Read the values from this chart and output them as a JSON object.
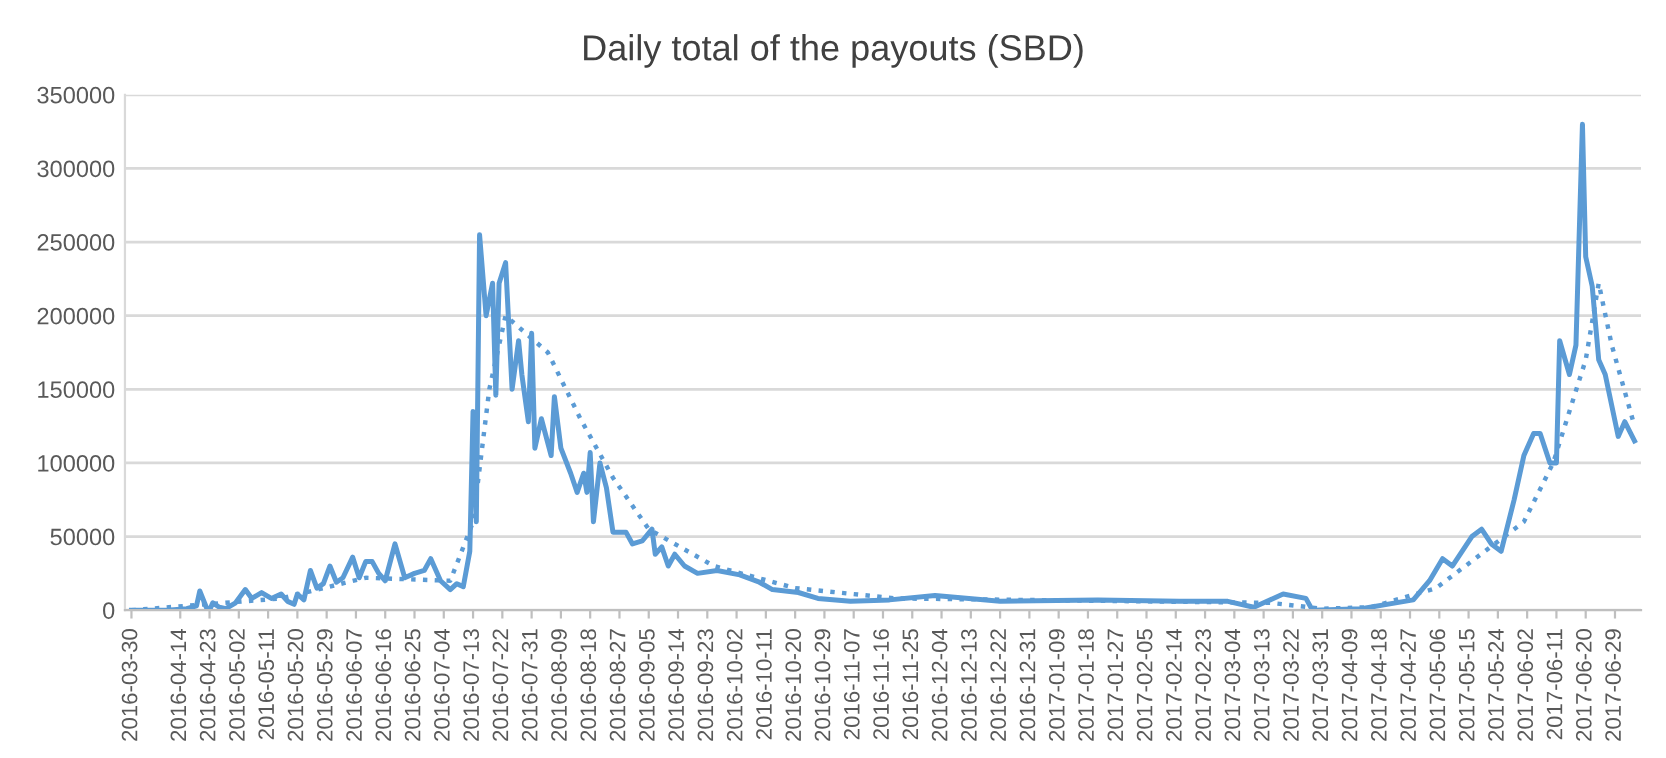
{
  "chart_data": {
    "type": "line",
    "title": "Daily total of the payouts (SBD)",
    "series": [
      {
        "color": "#5b9bd5",
        "line_style": "solid",
        "x": [
          "2016-03-30",
          "2016-04-10",
          "2016-04-16",
          "2016-04-19",
          "2016-04-20",
          "2016-04-22",
          "2016-04-23",
          "2016-04-24",
          "2016-04-26",
          "2016-04-28",
          "2016-05-01",
          "2016-05-04",
          "2016-05-06",
          "2016-05-09",
          "2016-05-12",
          "2016-05-15",
          "2016-05-17",
          "2016-05-19",
          "2016-05-20",
          "2016-05-22",
          "2016-05-24",
          "2016-05-26",
          "2016-05-28",
          "2016-05-30",
          "2016-06-01",
          "2016-06-03",
          "2016-06-06",
          "2016-06-08",
          "2016-06-10",
          "2016-06-12",
          "2016-06-14",
          "2016-06-16",
          "2016-06-19",
          "2016-06-22",
          "2016-06-25",
          "2016-06-28",
          "2016-06-30",
          "2016-07-03",
          "2016-07-06",
          "2016-07-08",
          "2016-07-10",
          "2016-07-12",
          "2016-07-13",
          "2016-07-14",
          "2016-07-15",
          "2016-07-17",
          "2016-07-19",
          "2016-07-20",
          "2016-07-21",
          "2016-07-23",
          "2016-07-25",
          "2016-07-27",
          "2016-07-28",
          "2016-07-30",
          "2016-07-31",
          "2016-08-01",
          "2016-08-03",
          "2016-08-06",
          "2016-08-07",
          "2016-08-09",
          "2016-08-12",
          "2016-08-14",
          "2016-08-16",
          "2016-08-17",
          "2016-08-18",
          "2016-08-19",
          "2016-08-21",
          "2016-08-23",
          "2016-08-25",
          "2016-08-29",
          "2016-08-31",
          "2016-09-03",
          "2016-09-06",
          "2016-09-07",
          "2016-09-09",
          "2016-09-11",
          "2016-09-13",
          "2016-09-16",
          "2016-09-20",
          "2016-09-26",
          "2016-10-03",
          "2016-10-09",
          "2016-10-13",
          "2016-10-21",
          "2016-10-27",
          "2016-11-06",
          "2016-11-18",
          "2016-12-02",
          "2016-12-22",
          "2017-01-21",
          "2017-02-15",
          "2017-03-02",
          "2017-03-10",
          "2017-03-19",
          "2017-03-26",
          "2017-03-28",
          "2017-04-12",
          "2017-04-28",
          "2017-05-03",
          "2017-05-07",
          "2017-05-10",
          "2017-05-16",
          "2017-05-19",
          "2017-05-22",
          "2017-05-25",
          "2017-05-29",
          "2017-06-01",
          "2017-06-04",
          "2017-06-06",
          "2017-06-09",
          "2017-06-11",
          "2017-06-12",
          "2017-06-15",
          "2017-06-17",
          "2017-06-19",
          "2017-06-20",
          "2017-06-22",
          "2017-06-24",
          "2017-06-26",
          "2017-06-30",
          "2017-07-02",
          "2017-07-05"
        ],
        "values": [
          0,
          0,
          1000,
          3000,
          13000,
          2000,
          0,
          5000,
          2000,
          1000,
          5000,
          14000,
          8000,
          12000,
          8000,
          11000,
          6000,
          4000,
          11000,
          7000,
          27000,
          15000,
          18000,
          30000,
          19000,
          22000,
          36000,
          22000,
          33000,
          33000,
          25000,
          20000,
          45000,
          22000,
          25000,
          27000,
          35000,
          20000,
          14000,
          18000,
          16000,
          40000,
          135000,
          60000,
          255000,
          200000,
          222000,
          146000,
          222000,
          236000,
          150000,
          183000,
          160000,
          128000,
          188000,
          110000,
          130000,
          105000,
          145000,
          110000,
          93000,
          80000,
          93000,
          80000,
          107000,
          60000,
          100000,
          83000,
          53000,
          53000,
          45000,
          47000,
          55000,
          38000,
          43000,
          30000,
          38000,
          30000,
          25000,
          27000,
          24000,
          19000,
          14000,
          12000,
          8000,
          6000,
          7000,
          10000,
          6000,
          7000,
          6000,
          6000,
          2000,
          11000,
          8000,
          0,
          1000,
          7000,
          20000,
          35000,
          30000,
          50000,
          55000,
          45000,
          40000,
          75000,
          105000,
          120000,
          120000,
          100000,
          100000,
          183000,
          160000,
          180000,
          330000,
          240000,
          220000,
          170000,
          160000,
          118000,
          128000,
          115000
        ]
      },
      {
        "color": "#5b9bd5",
        "line_style": "dotted",
        "x": [
          "2016-03-30",
          "2016-05-15",
          "2016-06-10",
          "2016-07-06",
          "2016-07-13",
          "2016-07-18",
          "2016-07-23",
          "2016-08-05",
          "2016-08-15",
          "2016-08-25",
          "2016-09-05",
          "2016-09-25",
          "2016-10-20",
          "2016-11-20",
          "2017-03-15",
          "2017-03-31",
          "2017-04-15",
          "2017-05-05",
          "2017-05-20",
          "2017-06-01",
          "2017-06-10",
          "2017-06-20",
          "2017-06-24",
          "2017-06-28",
          "2017-07-05"
        ],
        "values": [
          0,
          8000,
          22000,
          20000,
          60000,
          150000,
          200000,
          175000,
          130000,
          90000,
          55000,
          30000,
          15000,
          8000,
          5000,
          1000,
          2000,
          15000,
          40000,
          60000,
          100000,
          170000,
          222000,
          180000,
          125000
        ]
      }
    ],
    "xlim": [
      "2016-03-28",
      "2017-07-07"
    ],
    "xticks": [
      "2016-03-30",
      "2016-04-14",
      "2016-04-23",
      "2016-05-02",
      "2016-05-11",
      "2016-05-20",
      "2016-05-29",
      "2016-06-07",
      "2016-06-16",
      "2016-06-25",
      "2016-07-04",
      "2016-07-13",
      "2016-07-22",
      "2016-07-31",
      "2016-08-09",
      "2016-08-18",
      "2016-08-27",
      "2016-09-05",
      "2016-09-14",
      "2016-09-23",
      "2016-10-02",
      "2016-10-11",
      "2016-10-20",
      "2016-10-29",
      "2016-11-07",
      "2016-11-16",
      "2016-11-25",
      "2016-12-04",
      "2016-12-13",
      "2016-12-22",
      "2016-12-31",
      "2017-01-09",
      "2017-01-18",
      "2017-01-27",
      "2017-02-05",
      "2017-02-14",
      "2017-02-23",
      "2017-03-04",
      "2017-03-13",
      "2017-03-22",
      "2017-03-31",
      "2017-04-09",
      "2017-04-18",
      "2017-04-27",
      "2017-05-06",
      "2017-05-15",
      "2017-05-24",
      "2017-06-02",
      "2017-06-11",
      "2017-06-20",
      "2017-06-29"
    ],
    "ylim": [
      0,
      350000
    ],
    "yticks": [
      0,
      50000,
      100000,
      150000,
      200000,
      250000,
      300000,
      350000
    ],
    "grid": "y",
    "legend": false
  }
}
